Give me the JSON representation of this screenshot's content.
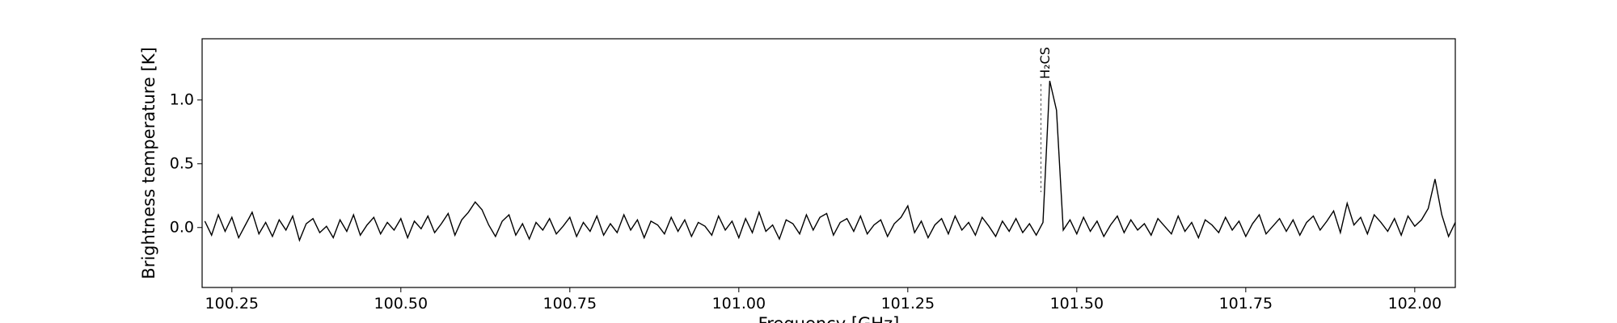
{
  "chart_data": {
    "type": "line",
    "x_label": "Frequency [GHz]",
    "y_label": "Brightness temperature [K]",
    "annotation": {
      "text": "H₂CS",
      "x": 101.447
    },
    "color": "#000000",
    "xlim": [
      100.206,
      102.06
    ],
    "ylim": [
      -0.47,
      1.48
    ],
    "xticks": [
      100.25,
      {
        "value": 100.5,
        "label": "100.50"
      },
      100.75,
      {
        "value": 101.0,
        "label": "101.00"
      },
      101.25,
      {
        "value": 101.5,
        "label": "101.50"
      },
      101.75,
      {
        "value": 102.0,
        "label": "102.00"
      }
    ],
    "yticks": [
      {
        "value": 0.0,
        "label": "0.0"
      },
      0.5,
      {
        "value": 1.0,
        "label": "1.0"
      }
    ],
    "x": [
      100.21,
      100.22,
      100.23,
      100.24,
      100.25,
      100.26,
      100.27,
      100.28,
      100.29,
      100.3,
      100.31,
      100.32,
      100.33,
      100.34,
      100.35,
      100.36,
      100.37,
      100.38,
      100.39,
      100.4,
      100.41,
      100.42,
      100.43,
      100.44,
      100.45,
      100.46,
      100.47,
      100.48,
      100.49,
      100.5,
      100.51,
      100.52,
      100.53,
      100.54,
      100.55,
      100.56,
      100.57,
      100.58,
      100.59,
      100.6,
      100.61,
      100.62,
      100.63,
      100.64,
      100.65,
      100.66,
      100.67,
      100.68,
      100.69,
      100.7,
      100.71,
      100.72,
      100.73,
      100.74,
      100.75,
      100.76,
      100.77,
      100.78,
      100.79,
      100.8,
      100.81,
      100.82,
      100.83,
      100.84,
      100.85,
      100.86,
      100.87,
      100.88,
      100.89,
      100.9,
      100.91,
      100.92,
      100.93,
      100.94,
      100.95,
      100.96,
      100.97,
      100.98,
      100.99,
      101.0,
      101.01,
      101.02,
      101.03,
      101.04,
      101.05,
      101.06,
      101.07,
      101.08,
      101.09,
      101.1,
      101.11,
      101.12,
      101.13,
      101.14,
      101.15,
      101.16,
      101.17,
      101.18,
      101.19,
      101.2,
      101.21,
      101.22,
      101.23,
      101.24,
      101.25,
      101.26,
      101.27,
      101.28,
      101.29,
      101.3,
      101.31,
      101.32,
      101.33,
      101.34,
      101.35,
      101.36,
      101.37,
      101.38,
      101.39,
      101.4,
      101.41,
      101.42,
      101.43,
      101.44,
      101.45,
      101.46,
      101.47,
      101.48,
      101.49,
      101.5,
      101.51,
      101.52,
      101.53,
      101.54,
      101.55,
      101.56,
      101.57,
      101.58,
      101.59,
      101.6,
      101.61,
      101.62,
      101.63,
      101.64,
      101.65,
      101.66,
      101.67,
      101.68,
      101.69,
      101.7,
      101.71,
      101.72,
      101.73,
      101.74,
      101.75,
      101.76,
      101.77,
      101.78,
      101.79,
      101.8,
      101.81,
      101.82,
      101.83,
      101.84,
      101.85,
      101.86,
      101.87,
      101.88,
      101.89,
      101.9,
      101.91,
      101.92,
      101.93,
      101.94,
      101.95,
      101.96,
      101.97,
      101.98,
      101.99,
      102.0,
      102.01,
      102.02,
      102.03,
      102.04,
      102.05,
      102.06
    ],
    "values": [
      0.05,
      -0.06,
      0.1,
      -0.03,
      0.08,
      -0.08,
      0.02,
      0.12,
      -0.05,
      0.04,
      -0.07,
      0.06,
      -0.02,
      0.09,
      -0.1,
      0.03,
      0.07,
      -0.04,
      0.01,
      -0.08,
      0.06,
      -0.03,
      0.1,
      -0.06,
      0.02,
      0.08,
      -0.05,
      0.04,
      -0.02,
      0.07,
      -0.08,
      0.05,
      -0.01,
      0.09,
      -0.04,
      0.03,
      0.11,
      -0.06,
      0.06,
      0.12,
      0.2,
      0.14,
      0.02,
      -0.07,
      0.05,
      0.1,
      -0.06,
      0.03,
      -0.09,
      0.04,
      -0.02,
      0.07,
      -0.05,
      0.01,
      0.08,
      -0.07,
      0.04,
      -0.03,
      0.09,
      -0.06,
      0.03,
      -0.04,
      0.1,
      -0.02,
      0.06,
      -0.08,
      0.05,
      0.02,
      -0.05,
      0.08,
      -0.03,
      0.06,
      -0.07,
      0.04,
      0.01,
      -0.06,
      0.09,
      -0.02,
      0.05,
      -0.08,
      0.07,
      -0.04,
      0.12,
      -0.03,
      0.02,
      -0.09,
      0.06,
      0.03,
      -0.05,
      0.1,
      -0.02,
      0.08,
      0.11,
      -0.06,
      0.04,
      0.07,
      -0.03,
      0.09,
      -0.05,
      0.02,
      0.06,
      -0.07,
      0.03,
      0.08,
      0.17,
      -0.04,
      0.05,
      -0.08,
      0.02,
      0.07,
      -0.05,
      0.09,
      -0.02,
      0.04,
      -0.06,
      0.08,
      0.01,
      -0.07,
      0.05,
      -0.03,
      0.07,
      -0.04,
      0.03,
      -0.06,
      0.04,
      1.15,
      0.92,
      -0.02,
      0.06,
      -0.05,
      0.08,
      -0.03,
      0.05,
      -0.07,
      0.02,
      0.09,
      -0.04,
      0.06,
      -0.02,
      0.03,
      -0.06,
      0.07,
      0.01,
      -0.05,
      0.09,
      -0.03,
      0.04,
      -0.08,
      0.06,
      0.02,
      -0.04,
      0.08,
      -0.02,
      0.05,
      -0.07,
      0.03,
      0.1,
      -0.05,
      0.01,
      0.07,
      -0.03,
      0.06,
      -0.06,
      0.04,
      0.09,
      -0.02,
      0.05,
      0.13,
      -0.04,
      0.19,
      0.02,
      0.08,
      -0.05,
      0.1,
      0.04,
      -0.03,
      0.07,
      -0.06,
      0.09,
      0.01,
      0.06,
      0.15,
      0.38,
      0.1,
      -0.07,
      0.04
    ]
  }
}
